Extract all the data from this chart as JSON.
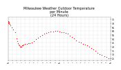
{
  "title": "Milwaukee Weather Outdoor Temperature\nper Minute\n(24 Hours)",
  "title_fontsize": 3.5,
  "dot_color": "#ff0000",
  "dot_size": 0.8,
  "bg_color": "#ffffff",
  "grid_color": "#bbbbbb",
  "tick_color": "#000000",
  "ylim": [
    22,
    78
  ],
  "xlim": [
    0,
    1440
  ],
  "yticks": [
    25,
    30,
    35,
    40,
    45,
    50,
    55,
    60,
    65,
    70,
    75
  ],
  "ytick_labels": [
    "25",
    "30",
    "35",
    "40",
    "45",
    "50",
    "55",
    "60",
    "65",
    "70",
    "75"
  ],
  "xtick_positions": [
    0,
    60,
    120,
    180,
    240,
    300,
    360,
    420,
    480,
    540,
    600,
    660,
    720,
    780,
    840,
    900,
    960,
    1020,
    1080,
    1140,
    1200,
    1260,
    1320,
    1380,
    1440
  ],
  "xtick_labels": [
    "12\nam",
    "1",
    "2",
    "3",
    "4",
    "5",
    "6",
    "7",
    "8",
    "9",
    "10",
    "11",
    "12\npm",
    "1",
    "2",
    "3",
    "4",
    "5",
    "6",
    "7",
    "8",
    "9",
    "10",
    "11",
    "12\nam"
  ],
  "vgrid_positions": [
    0,
    60,
    120,
    180,
    240,
    300,
    360,
    420,
    480,
    540,
    600,
    660,
    720,
    780,
    840,
    900,
    960,
    1020,
    1080,
    1140,
    1200,
    1260,
    1320,
    1380,
    1440
  ],
  "data_x": [
    0,
    3,
    6,
    10,
    15,
    20,
    30,
    50,
    70,
    100,
    120,
    130,
    140,
    150,
    160,
    170,
    180,
    190,
    200,
    210,
    220,
    240,
    260,
    280,
    300,
    330,
    360,
    390,
    420,
    450,
    480,
    510,
    540,
    570,
    600,
    630,
    660,
    690,
    720,
    750,
    780,
    810,
    840,
    870,
    900,
    930,
    960,
    990,
    1020,
    1050,
    1080,
    1110,
    1140,
    1170,
    1200,
    1230,
    1260,
    1290,
    1320,
    1350,
    1380,
    1410,
    1440
  ],
  "data_y": [
    70,
    71,
    72,
    71,
    70,
    69,
    67,
    64,
    62,
    58,
    50,
    47,
    44,
    42,
    41,
    40,
    40,
    40,
    41,
    41,
    42,
    43,
    43,
    44,
    44,
    45,
    47,
    49,
    51,
    53,
    55,
    56,
    57,
    58,
    59,
    59,
    60,
    60,
    59,
    58,
    58,
    57,
    56,
    54,
    52,
    50,
    48,
    46,
    45,
    43,
    42,
    41,
    40,
    38,
    36,
    34,
    32,
    30,
    29,
    27,
    26,
    25,
    25
  ]
}
